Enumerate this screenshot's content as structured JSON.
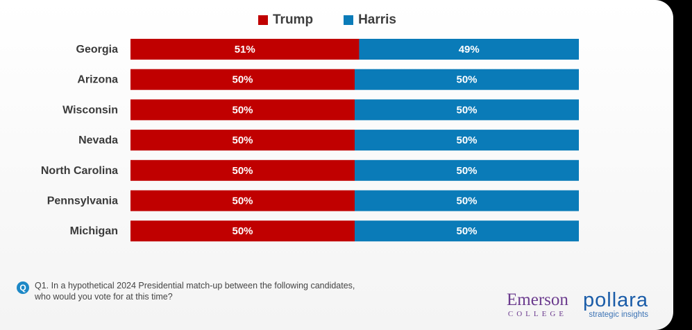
{
  "colors": {
    "trump": "#c00000",
    "harris": "#0a7bb8"
  },
  "legend": [
    {
      "label": "Trump",
      "color": "#c00000"
    },
    {
      "label": "Harris",
      "color": "#0a7bb8"
    }
  ],
  "chart_data": {
    "type": "bar",
    "orientation": "horizontal",
    "stacked": true,
    "categories": [
      "Georgia",
      "Arizona",
      "Wisconsin",
      "Nevada",
      "North Carolina",
      "Pennsylvania",
      "Michigan"
    ],
    "series": [
      {
        "name": "Trump",
        "values": [
          51,
          50,
          50,
          50,
          50,
          50,
          50
        ],
        "labels": [
          "51%",
          "50%",
          "50%",
          "50%",
          "50%",
          "50%",
          "50%"
        ]
      },
      {
        "name": "Harris",
        "values": [
          49,
          50,
          50,
          50,
          50,
          50,
          50
        ],
        "labels": [
          "49%",
          "50%",
          "50%",
          "50%",
          "50%",
          "50%",
          "50%"
        ]
      }
    ],
    "xlim": [
      0,
      100
    ],
    "grid": false,
    "legend_position": "top-center"
  },
  "question": {
    "icon": "Q",
    "line1": "Q1. In a hypothetical 2024 Presidential match-up between the following candidates,",
    "line2": "who would you vote for at this time?"
  },
  "logos": {
    "emerson_name": "Emerson",
    "emerson_sub": "COLLEGE",
    "pollara_name": "pollara",
    "pollara_sub": "strategic insights"
  }
}
